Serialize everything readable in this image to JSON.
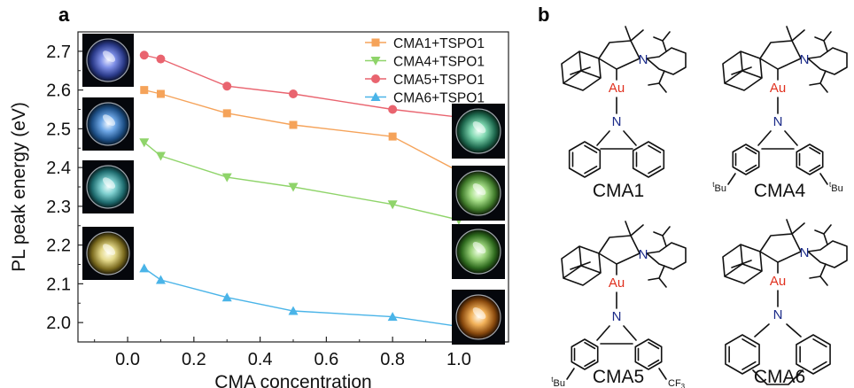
{
  "panel_a_letter": "a",
  "panel_b_letter": "b",
  "chart_data": {
    "type": "line",
    "xlabel": "CMA concentration",
    "ylabel": "PL peak energy (eV)",
    "xlim": [
      -0.15,
      1.15
    ],
    "ylim": [
      1.95,
      2.75
    ],
    "xticks": [
      "0.0",
      "0.2",
      "0.4",
      "0.6",
      "0.8",
      "1.0"
    ],
    "yticks": [
      "2.0",
      "2.1",
      "2.2",
      "2.3",
      "2.4",
      "2.5",
      "2.6",
      "2.7"
    ],
    "legend_position": "top-right",
    "series": [
      {
        "name": "CMA1+TSPO1",
        "marker": "square",
        "color": "#f5a35a",
        "x": [
          0.05,
          0.1,
          0.3,
          0.5,
          0.8,
          1.0
        ],
        "y": [
          2.6,
          2.59,
          2.54,
          2.51,
          2.48,
          2.39
        ]
      },
      {
        "name": "CMA4+TSPO1",
        "marker": "triangle-down",
        "color": "#8fd46a",
        "x": [
          0.05,
          0.1,
          0.3,
          0.5,
          0.8,
          1.0
        ],
        "y": [
          2.465,
          2.43,
          2.375,
          2.35,
          2.305,
          2.265
        ]
      },
      {
        "name": "CMA5+TSPO1",
        "marker": "circle",
        "color": "#e9646f",
        "x": [
          0.05,
          0.1,
          0.3,
          0.5,
          0.8,
          1.0
        ],
        "y": [
          2.69,
          2.68,
          2.61,
          2.59,
          2.55,
          2.53
        ]
      },
      {
        "name": "CMA6+TSPO1",
        "marker": "triangle-up",
        "color": "#4ab4e8",
        "x": [
          0.05,
          0.1,
          0.3,
          0.5,
          0.8,
          1.0
        ],
        "y": [
          2.14,
          2.11,
          2.065,
          2.03,
          2.015,
          1.99
        ]
      }
    ]
  },
  "photos_left": [
    {
      "tint": "blue-purple"
    },
    {
      "tint": "blue"
    },
    {
      "tint": "cyan"
    },
    {
      "tint": "yellow"
    }
  ],
  "photos_right": [
    {
      "tint": "cyan-green"
    },
    {
      "tint": "light-green"
    },
    {
      "tint": "green"
    },
    {
      "tint": "orange"
    }
  ],
  "molecules": {
    "metal_label": "Au",
    "nitrogen_label": "N",
    "tbu_label": "tBu",
    "cf3_label": "CF",
    "cf3_sub": "3",
    "names": [
      "CMA1",
      "CMA4",
      "CMA5",
      "CMA6"
    ]
  }
}
